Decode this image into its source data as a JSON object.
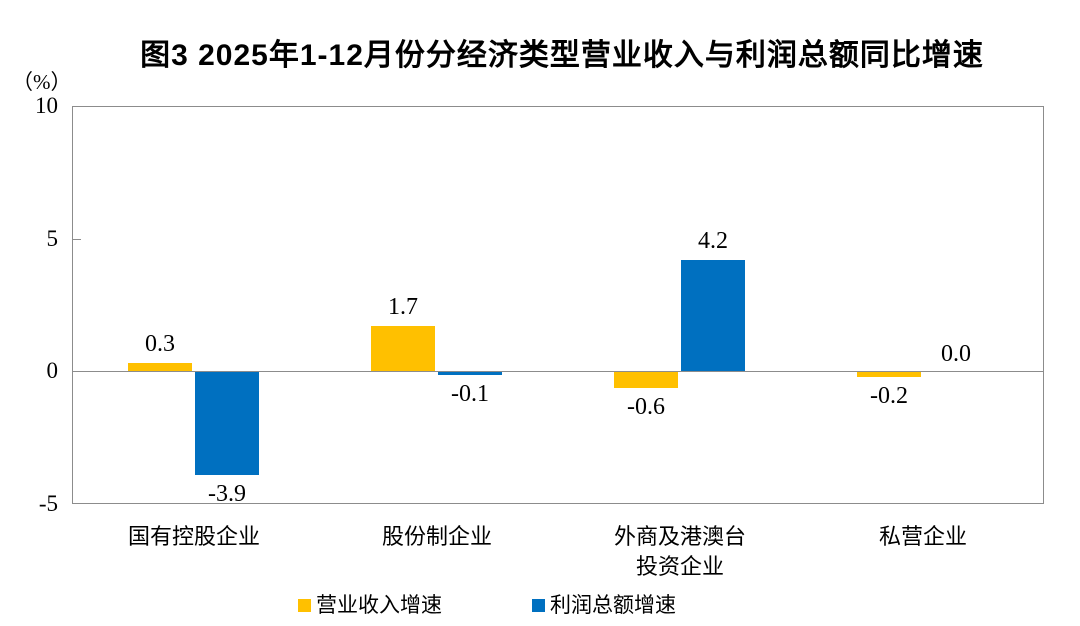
{
  "page": {
    "background": "#ffffff"
  },
  "chart_data": {
    "type": "bar",
    "title": "图3  2025年1-12月份分经济类型营业收入与利润总额同比增速",
    "unit_label": "（%）",
    "categories": [
      [
        "国有控股企业"
      ],
      [
        "股份制企业"
      ],
      [
        "外商及港澳台",
        "投资企业"
      ],
      [
        "私营企业"
      ]
    ],
    "series": [
      {
        "name": "营业收入增速",
        "color": "#FFC000",
        "values": [
          0.3,
          1.7,
          -0.6,
          -0.2
        ]
      },
      {
        "name": "利润总额增速",
        "color": "#0070C0",
        "values": [
          -3.9,
          -0.1,
          4.2,
          0.0
        ]
      }
    ],
    "value_labels": {
      "营业收入增速": [
        "0.3",
        "1.7",
        "-0.6",
        "-0.2"
      ],
      "利润总额增速": [
        "-3.9",
        "-0.1",
        "4.2",
        "0.0"
      ]
    },
    "ylim": [
      -5,
      10
    ],
    "yticks": [
      10,
      5,
      0,
      -5
    ],
    "grid": false,
    "legend_position": "bottom",
    "axis_color": "#8c8c8c",
    "text_color": "#000000"
  }
}
